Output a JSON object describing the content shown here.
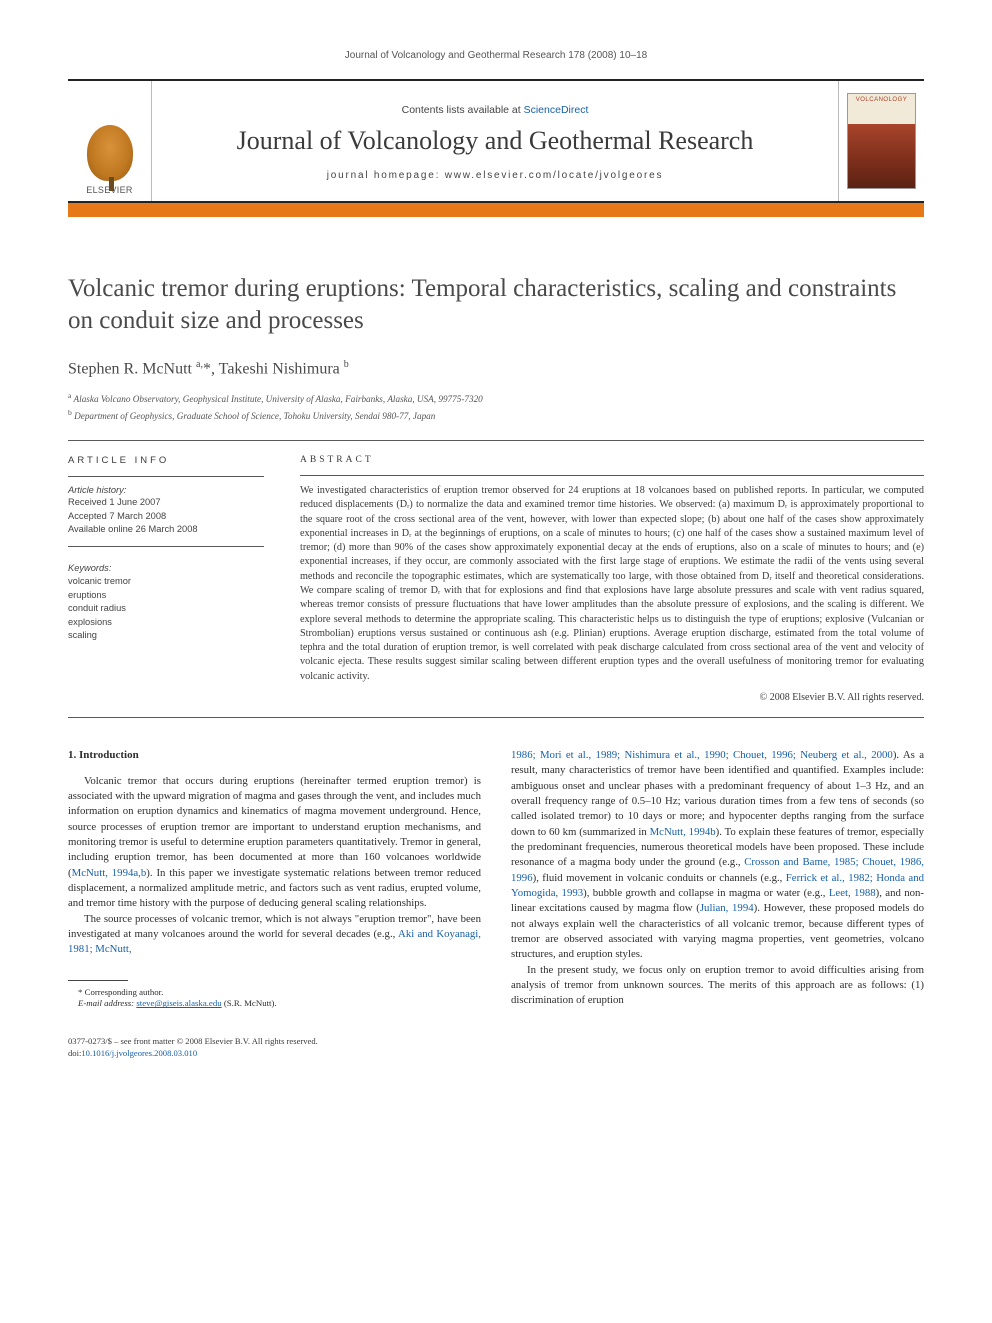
{
  "running_head": "Journal of Volcanology and Geothermal Research 178 (2008) 10–18",
  "masthead": {
    "publisher": "ELSEVIER",
    "contents_prefix": "Contents lists available at ",
    "contents_link": "ScienceDirect",
    "journal": "Journal of Volcanology and Geothermal Research",
    "homepage_prefix": "journal homepage: ",
    "homepage": "www.elsevier.com/locate/jvolgeores",
    "cover_label": "VOLCANOLOGY"
  },
  "accent_color": "#e67817",
  "title": "Volcanic tremor during eruptions: Temporal characteristics, scaling and constraints on conduit size and processes",
  "authors_html": "Stephen R. McNutt <sup>a,</sup><span class='star'>*</span>, Takeshi Nishimura <sup>b</sup>",
  "affiliations": [
    "a Alaska Volcano Observatory, Geophysical Institute, University of Alaska, Fairbanks, Alaska, USA, 99775-7320",
    "b Department of Geophysics, Graduate School of Science, Tohoku University, Sendai 980-77, Japan"
  ],
  "article_info": {
    "heading": "ARTICLE INFO",
    "history_label": "Article history:",
    "history": [
      "Received 1 June 2007",
      "Accepted 7 March 2008",
      "Available online 26 March 2008"
    ],
    "keywords_label": "Keywords:",
    "keywords": [
      "volcanic tremor",
      "eruptions",
      "conduit radius",
      "explosions",
      "scaling"
    ]
  },
  "abstract": {
    "heading": "ABSTRACT",
    "text": "We investigated characteristics of eruption tremor observed for 24 eruptions at 18 volcanoes based on published reports. In particular, we computed reduced displacements (Dᵣ) to normalize the data and examined tremor time histories. We observed: (a) maximum Dᵣ is approximately proportional to the square root of the cross sectional area of the vent, however, with lower than expected slope; (b) about one half of the cases show approximately exponential increases in Dᵣ at the beginnings of eruptions, on a scale of minutes to hours; (c) one half of the cases show a sustained maximum level of tremor; (d) more than 90% of the cases show approximately exponential decay at the ends of eruptions, also on a scale of minutes to hours; and (e) exponential increases, if they occur, are commonly associated with the first large stage of eruptions. We estimate the radii of the vents using several methods and reconcile the topographic estimates, which are systematically too large, with those obtained from Dᵣ itself and theoretical considerations. We compare scaling of tremor Dᵣ with that for explosions and find that explosions have large absolute pressures and scale with vent radius squared, whereas tremor consists of pressure fluctuations that have lower amplitudes than the absolute pressure of explosions, and the scaling is different. We explore several methods to determine the appropriate scaling. This characteristic helps us to distinguish the type of eruptions; explosive (Vulcanian or Strombolian) eruptions versus sustained or continuous ash (e.g. Plinian) eruptions. Average eruption discharge, estimated from the total volume of tephra and the total duration of eruption tremor, is well correlated with peak discharge calculated from cross sectional area of the vent and velocity of volcanic ejecta. These results suggest similar scaling between different eruption types and the overall usefulness of monitoring tremor for evaluating volcanic activity.",
    "copyright": "© 2008 Elsevier B.V. All rights reserved."
  },
  "body": {
    "section_heading": "1. Introduction",
    "col1_p1": "Volcanic tremor that occurs during eruptions (hereinafter termed eruption tremor) is associated with the upward migration of magma and gases through the vent, and includes much information on eruption dynamics and kinematics of magma movement underground. Hence, source processes of eruption tremor are important to understand eruption mechanisms, and monitoring tremor is useful to determine eruption parameters quantitatively. Tremor in general, including eruption tremor, has been documented at more than 160 volcanoes worldwide (",
    "col1_cite1": "McNutt, 1994a,b",
    "col1_p1b": "). In this paper we investigate systematic relations between tremor reduced displacement, a normalized amplitude metric, and factors such as vent radius, erupted volume, and tremor time history with the purpose of deducing general scaling relationships.",
    "col1_p2": "The source processes of volcanic tremor, which is not always \"eruption tremor\", have been investigated at many volcanoes around the world for several decades (e.g., ",
    "col1_cite2": "Aki and Koyanagi, 1981; McNutt,",
    "col2_cite_cont": "1986; Mori et al., 1989; Nishimura et al., 1990; Chouet, 1996; Neuberg et al., 2000",
    "col2_p1": "). As a result, many characteristics of tremor have been identified and quantified. Examples include: ambiguous onset and unclear phases with a predominant frequency of about 1–3 Hz, and an overall frequency range of 0.5–10 Hz; various duration times from a few tens of seconds (so called isolated tremor) to 10 days or more; and hypocenter depths ranging from the surface down to 60 km (summarized in ",
    "col2_cite1": "McNutt, 1994b",
    "col2_p1b": "). To explain these features of tremor, especially the predominant frequencies, numerous theoretical models have been proposed. These include resonance of a magma body under the ground (e.g., ",
    "col2_cite2": "Crosson and Bame, 1985; Chouet, 1986, 1996",
    "col2_p1c": "), fluid movement in volcanic conduits or channels (e.g., ",
    "col2_cite3": "Ferrick et al., 1982; Honda and Yomogida, 1993",
    "col2_p1d": "), bubble growth and collapse in magma or water (e.g., ",
    "col2_cite4": "Leet, 1988",
    "col2_p1e": "), and non-linear excitations caused by magma flow (",
    "col2_cite5": "Julian, 1994",
    "col2_p1f": "). However, these proposed models do not always explain well the characteristics of all volcanic tremor, because different types of tremor are observed associated with varying magma properties, vent geometries, volcano structures, and eruption styles.",
    "col2_p2": "In the present study, we focus only on eruption tremor to avoid difficulties arising from analysis of tremor from unknown sources. The merits of this approach are as follows: (1) discrimination of eruption"
  },
  "footnote": {
    "corr": "* Corresponding author.",
    "email_label": "E-mail address: ",
    "email": "steve@giseis.alaska.edu",
    "email_suffix": " (S.R. McNutt)."
  },
  "footer": {
    "line1": "0377-0273/$ – see front matter © 2008 Elsevier B.V. All rights reserved.",
    "doi_prefix": "doi:",
    "doi": "10.1016/j.jvolgeores.2008.03.010"
  }
}
